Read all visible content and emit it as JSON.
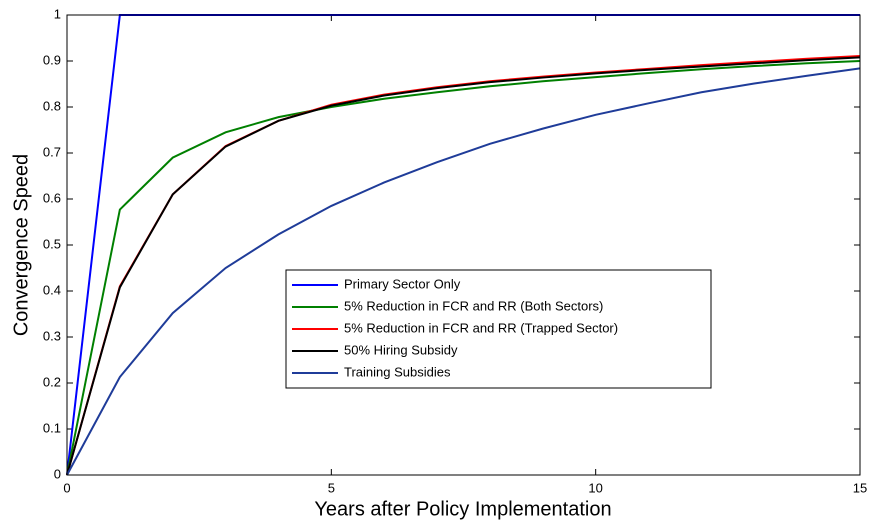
{
  "chart_data": {
    "type": "line",
    "x": [
      0,
      1,
      2,
      3,
      4,
      5,
      6,
      7,
      8,
      9,
      10,
      11,
      12,
      13,
      14,
      15
    ],
    "xlabel": "Years after Policy Implementation",
    "ylabel": "Convergence Speed",
    "xlim": [
      0,
      15
    ],
    "xticks": [
      0,
      5,
      10,
      15
    ],
    "ylim": [
      0,
      1
    ],
    "yticks": [
      0,
      0.1,
      0.2,
      0.3,
      0.4,
      0.5,
      0.6,
      0.7,
      0.8,
      0.9,
      1
    ],
    "grid": false,
    "legend_position": "center",
    "series": [
      {
        "name": "Primary Sector Only",
        "color": "#0000ff",
        "values": [
          0,
          1,
          1,
          1,
          1,
          1,
          1,
          1,
          1,
          1,
          1,
          1,
          1,
          1,
          1,
          1
        ]
      },
      {
        "name": "5% Reduction in FCR and RR (Both Sectors)",
        "color": "#008000",
        "values": [
          0,
          0.577,
          0.69,
          0.745,
          0.778,
          0.8,
          0.818,
          0.832,
          0.845,
          0.856,
          0.865,
          0.874,
          0.882,
          0.889,
          0.895,
          0.9
        ]
      },
      {
        "name": "5% Reduction in FCR and RR (Trapped Sector)",
        "color": "#ff0000",
        "values": [
          0,
          0.41,
          0.61,
          0.715,
          0.77,
          0.805,
          0.827,
          0.843,
          0.856,
          0.866,
          0.875,
          0.883,
          0.891,
          0.898,
          0.905,
          0.911
        ]
      },
      {
        "name": "50% Hiring Subsidy",
        "color": "#000000",
        "values": [
          0,
          0.408,
          0.61,
          0.714,
          0.77,
          0.803,
          0.825,
          0.841,
          0.854,
          0.864,
          0.873,
          0.881,
          0.888,
          0.895,
          0.902,
          0.908
        ]
      },
      {
        "name": "Training Subsidies",
        "color": "#1f3c99",
        "values": [
          0,
          0.213,
          0.352,
          0.45,
          0.523,
          0.585,
          0.636,
          0.68,
          0.72,
          0.753,
          0.783,
          0.808,
          0.832,
          0.851,
          0.868,
          0.884
        ]
      }
    ]
  }
}
